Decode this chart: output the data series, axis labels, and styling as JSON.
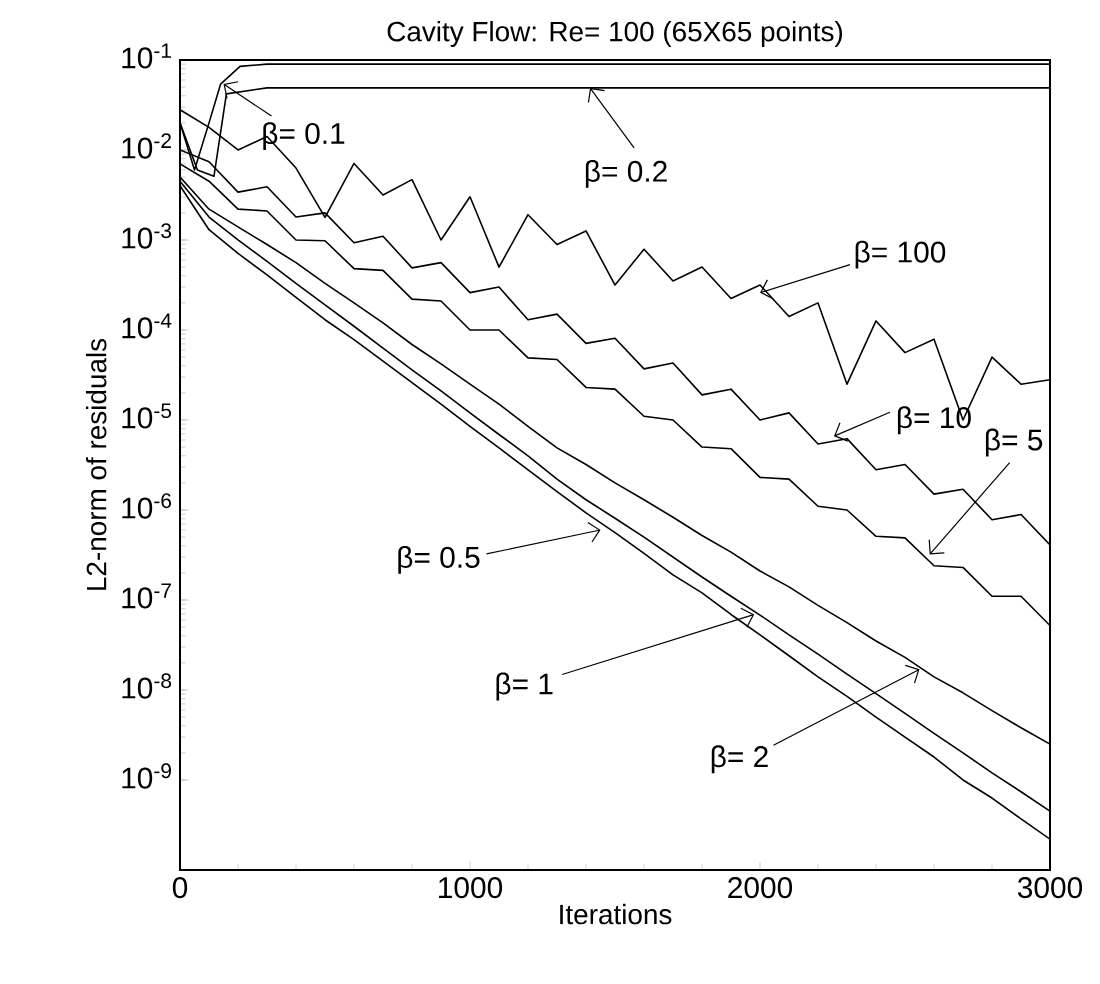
{
  "chart_data": {
    "type": "line",
    "title": "Cavity Flow: Re= 100  (65X65 points)",
    "xlabel": "Iterations",
    "ylabel": "L2-norm of residuals",
    "log": "y",
    "xlim": [
      0,
      3000
    ],
    "xticks": [
      0,
      1000,
      2000,
      3000
    ],
    "ylim": [
      1e-10,
      0.1
    ],
    "yticks": [
      {
        "value": 1e-09,
        "label": "10$^{-9}$"
      },
      {
        "value": 1e-08,
        "label": "10$^{-8}$"
      },
      {
        "value": 1e-07,
        "label": "10$^{-7}$"
      },
      {
        "value": 1e-06,
        "label": "10$^{-6}$"
      },
      {
        "value": 1e-05,
        "label": "10$^{-5}$"
      },
      {
        "value": 0.0001,
        "label": "10$^{-4}$"
      },
      {
        "value": 0.001,
        "label": "10$^{-3}$"
      },
      {
        "value": 0.01,
        "label": "10$^{-2}$"
      },
      {
        "value": 0.1,
        "label": "10$^{-1}$"
      }
    ],
    "x": [
      0,
      100,
      200,
      300,
      400,
      500,
      600,
      700,
      800,
      900,
      1000,
      1100,
      1200,
      1300,
      1400,
      1500,
      1600,
      1700,
      1800,
      1900,
      2000,
      2100,
      2200,
      2300,
      2400,
      2500,
      2600,
      2700,
      2800,
      2900,
      3000
    ],
    "series": [
      {
        "color": "#000000",
        "x": [
          0,
          50,
          100,
          140,
          207,
          300,
          3000
        ],
        "values": [
          0.02,
          0.006,
          0.02,
          0.054,
          0.085,
          0.09,
          0.09
        ]
      },
      {
        "color": "#000000",
        "x": [
          0,
          60,
          117,
          160,
          300,
          3000
        ],
        "values": [
          0.02,
          0.006,
          0.0051,
          0.042,
          0.049,
          0.049
        ]
      },
      {
        "color": "#000000",
        "values": [
          0.028,
          0.0178,
          0.01,
          0.0141,
          0.0063,
          0.00178,
          0.00708,
          0.00316,
          0.00468,
          0.001,
          0.00302,
          0.0005,
          0.00191,
          0.00089,
          0.00126,
          0.000316,
          0.00079,
          0.00035,
          0.0005,
          0.000224,
          0.000316,
          0.000141,
          0.0002,
          2.5e-05,
          0.000126,
          5.6e-05,
          7.9e-05,
          1e-05,
          5e-05,
          2.5e-05,
          2.8e-05
        ]
      },
      {
        "color": "#000000",
        "values": [
          0.01,
          0.0074,
          0.0034,
          0.0039,
          0.0018,
          0.002,
          0.00093,
          0.0011,
          0.00049,
          0.00056,
          0.00026,
          0.0003,
          0.00013,
          0.00015,
          7.1e-05,
          8.1e-05,
          3.7e-05,
          4.3e-05,
          1.9e-05,
          2.2e-05,
          1e-05,
          1.2e-05,
          5.4e-06,
          6.2e-06,
          2.8e-06,
          3.2e-06,
          1.5e-06,
          1.7e-06,
          7.8e-07,
          8.9e-07,
          4.1e-07
        ]
      },
      {
        "color": "#000000",
        "values": [
          0.007,
          0.0045,
          0.0022,
          0.0021,
          0.001,
          0.00098,
          0.00048,
          0.00046,
          0.00022,
          0.00021,
          0.0001,
          0.0001,
          4.9e-05,
          4.7e-05,
          2.3e-05,
          2.2e-05,
          1.1e-05,
          1e-05,
          5e-06,
          4.8e-06,
          2.3e-06,
          2.2e-06,
          1.1e-06,
          1e-06,
          5.1e-07,
          4.9e-07,
          2.4e-07,
          2.3e-07,
          1.1e-07,
          1.1e-07,
          5.2e-08
        ]
      },
      {
        "color": "#000000",
        "values": [
          0.005,
          0.0022,
          0.0014,
          0.00089,
          0.00056,
          0.00033,
          0.0002,
          0.00012,
          6.9e-05,
          4.2e-05,
          2.5e-05,
          1.5e-05,
          8.5e-06,
          4.9e-06,
          3.2e-06,
          2e-06,
          1.3e-06,
          8.3e-07,
          5.2e-07,
          3.4e-07,
          2.1e-07,
          1.4e-07,
          8.7e-08,
          5.6e-08,
          3.5e-08,
          2.3e-08,
          1.4e-08,
          9.3e-09,
          5.9e-09,
          3.8e-09,
          2.5e-09
        ]
      },
      {
        "color": "#000000",
        "values": [
          0.0045,
          0.0018,
          0.001,
          0.00058,
          0.00033,
          0.00019,
          0.00011,
          6.3e-05,
          3.6e-05,
          2.1e-05,
          1.2e-05,
          6.9e-06,
          4e-06,
          2.2e-06,
          1.3e-06,
          8.1e-07,
          5e-07,
          3e-07,
          1.8e-07,
          1.1e-07,
          6.8e-08,
          4.1e-08,
          2.5e-08,
          1.5e-08,
          9.1e-09,
          5.5e-09,
          3.3e-09,
          2e-09,
          1.2e-09,
          7.4e-10,
          4.5e-10
        ]
      },
      {
        "color": "#000000",
        "values": [
          0.004,
          0.0013,
          0.00071,
          0.00041,
          0.00023,
          0.00013,
          7.8e-05,
          4.5e-05,
          2.6e-05,
          1.5e-05,
          8.5e-06,
          4.9e-06,
          2.8e-06,
          1.6e-06,
          9.3e-07,
          5.6e-07,
          3.3e-07,
          1.9e-07,
          1.2e-07,
          6.9e-08,
          4.1e-08,
          2.4e-08,
          1.4e-08,
          8.5e-09,
          5e-09,
          3e-09,
          1.8e-09,
          1e-09,
          6.3e-10,
          3.7e-10,
          2.2e-10
        ]
      }
    ],
    "annotations": [
      {
        "text": "β= 0.1",
        "x": 150,
        "y": 0.054
      },
      {
        "text": "β= 0.2",
        "x": 1414,
        "y": 0.049
      },
      {
        "text": "β= 100",
        "x": 2000,
        "y": 0.00026
      },
      {
        "text": "β= 10",
        "x": 2255,
        "y": 6.6e-06
      },
      {
        "text": "β= 5",
        "x": 2585,
        "y": 3.2e-07
      },
      {
        "text": "β= 0.5",
        "x": 1450,
        "y": 6e-07
      },
      {
        "text": "β= 1",
        "x": 1980,
        "y": 6.9e-08
      },
      {
        "text": "β= 2",
        "x": 2550,
        "y": 1.7e-08
      }
    ]
  }
}
